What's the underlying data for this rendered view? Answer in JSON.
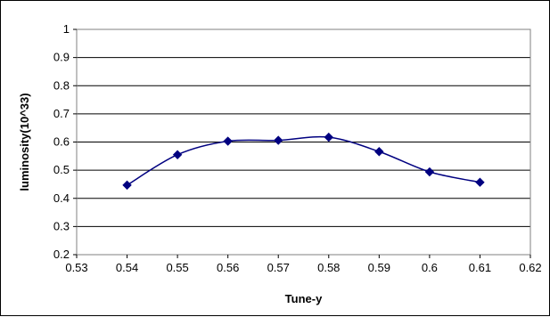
{
  "chart_data": {
    "type": "line",
    "title": "",
    "xlabel": "Tune-y",
    "ylabel": "luminosity(10^33)",
    "x": [
      0.54,
      0.55,
      0.56,
      0.57,
      0.58,
      0.59,
      0.6,
      0.61
    ],
    "series": [
      {
        "values": [
          0.447,
          0.555,
          0.603,
          0.606,
          0.617,
          0.566,
          0.494,
          0.457
        ]
      }
    ],
    "xlim": [
      0.53,
      0.62
    ],
    "ylim": [
      0.2,
      1.0
    ],
    "xticks": [
      "0.53",
      "0.54",
      "0.55",
      "0.56",
      "0.57",
      "0.58",
      "0.59",
      "0.6",
      "0.61",
      "0.62"
    ],
    "yticks": [
      "0.2",
      "0.3",
      "0.4",
      "0.5",
      "0.6",
      "0.7",
      "0.8",
      "0.9",
      "1"
    ],
    "grid": "horizontal",
    "smooth_line": true,
    "marker": "diamond",
    "line_color": "#000080",
    "grid_color": "#000000"
  }
}
